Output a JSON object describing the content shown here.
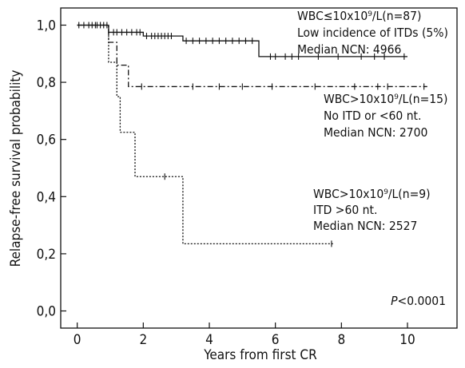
{
  "chart_data": {
    "type": "line",
    "xlabel": "Years from first CR",
    "ylabel": "Relapse-free survival probability",
    "xlim": [
      -0.5,
      11.5
    ],
    "ylim": [
      -0.06,
      1.06
    ],
    "x_ticks": [
      0,
      2,
      4,
      6,
      8,
      10
    ],
    "y_ticks": [
      0.0,
      0.2,
      0.4,
      0.6,
      0.8,
      1.0
    ],
    "y_tick_labels": [
      "0,0",
      "0,2",
      "0,4",
      "0,6",
      "0,8",
      "1,0"
    ],
    "grid": false,
    "pvalue": {
      "prefix": "P",
      "rest": "<0.0001"
    },
    "series": [
      {
        "style": "solid",
        "steps": [
          [
            0,
            1.0
          ],
          [
            0.95,
            0.975
          ],
          [
            2.0,
            0.962
          ],
          [
            3.2,
            0.945
          ],
          [
            5.5,
            0.89
          ],
          [
            10.0,
            0.89
          ]
        ],
        "censors": [
          0.05,
          0.2,
          0.35,
          0.45,
          0.55,
          0.7,
          0.8,
          0.9,
          1.1,
          1.2,
          1.35,
          1.5,
          1.65,
          1.8,
          1.9,
          2.1,
          2.25,
          2.35,
          2.45,
          2.55,
          2.65,
          2.75,
          2.85,
          3.3,
          3.5,
          3.7,
          3.9,
          4.1,
          4.3,
          4.5,
          4.7,
          4.9,
          5.1,
          5.3,
          5.85,
          6.0,
          6.3,
          6.5,
          6.7,
          7.3,
          7.9,
          8.6,
          9.0,
          9.3,
          9.9
        ],
        "labels": [
          "WBC≤10x10⁹/L(n=87)",
          "Low incidence of ITDs (5%)",
          "Median NCN: 4966"
        ]
      },
      {
        "style": "dashdot",
        "steps": [
          [
            0,
            1.0
          ],
          [
            0.95,
            0.94
          ],
          [
            1.2,
            0.86
          ],
          [
            1.55,
            0.785
          ],
          [
            10.6,
            0.785
          ]
        ],
        "censors": [
          0.6,
          1.95,
          3.5,
          4.3,
          5.0,
          5.9,
          7.2,
          8.4,
          9.1,
          9.4,
          10.5
        ],
        "labels": [
          "WBC>10x10⁹/L(n=15)",
          "No ITD or <60 nt.",
          "Median NCN: 2700"
        ]
      },
      {
        "style": "dotted",
        "steps": [
          [
            0,
            1.0
          ],
          [
            0.95,
            0.87
          ],
          [
            1.2,
            0.75
          ],
          [
            1.3,
            0.625
          ],
          [
            1.75,
            0.47
          ],
          [
            3.2,
            0.235
          ],
          [
            7.75,
            0.235
          ]
        ],
        "censors": [
          2.65,
          7.7
        ],
        "labels": [
          "WBC>10x10⁹/L(n=9)",
          "ITD >60 nt.",
          "Median NCN: 2527"
        ]
      }
    ]
  }
}
